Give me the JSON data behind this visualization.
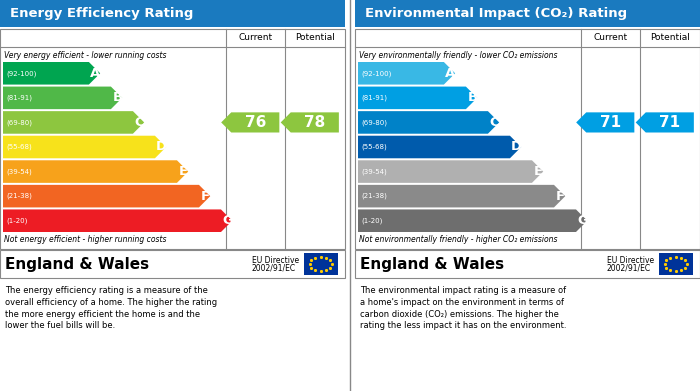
{
  "left_title": "Energy Efficiency Rating",
  "right_title": "Environmental Impact (CO₂) Rating",
  "header_bg": "#1a7abf",
  "energy_colors": [
    "#00a550",
    "#50b848",
    "#8dc63f",
    "#f7e21b",
    "#f7a21b",
    "#f26522",
    "#ed1c24"
  ],
  "co2_colors": [
    "#39b8e5",
    "#009fe3",
    "#0082c8",
    "#005bac",
    "#b0b0b0",
    "#8a8a8a",
    "#6e6e6e"
  ],
  "bands": [
    {
      "label": "A",
      "range": "(92-100)"
    },
    {
      "label": "B",
      "range": "(81-91)"
    },
    {
      "label": "C",
      "range": "(69-80)"
    },
    {
      "label": "D",
      "range": "(55-68)"
    },
    {
      "label": "E",
      "range": "(39-54)"
    },
    {
      "label": "F",
      "range": "(21-38)"
    },
    {
      "label": "G",
      "range": "(1-20)"
    }
  ],
  "energy_current": 76,
  "energy_potential": 78,
  "co2_current": 71,
  "co2_potential": 71,
  "energy_current_color": "#8dc63f",
  "energy_potential_color": "#8dc63f",
  "co2_current_color": "#009fe3",
  "co2_potential_color": "#009fe3",
  "energy_top_text": "Very energy efficient - lower running costs",
  "energy_bottom_text": "Not energy efficient - higher running costs",
  "co2_top_text": "Very environmentally friendly - lower CO₂ emissions",
  "co2_bottom_text": "Not environmentally friendly - higher CO₂ emissions",
  "footer_left": "England & Wales",
  "footer_right_line1": "EU Directive",
  "footer_right_line2": "2002/91/EC",
  "desc_left": "The energy efficiency rating is a measure of the\noverall efficiency of a home. The higher the rating\nthe more energy efficient the home is and the\nlower the fuel bills will be.",
  "desc_right": "The environmental impact rating is a measure of\na home's impact on the environment in terms of\ncarbon dioxide (CO₂) emissions. The higher the\nrating the less impact it has on the environment.",
  "current_label": "Current",
  "potential_label": "Potential"
}
